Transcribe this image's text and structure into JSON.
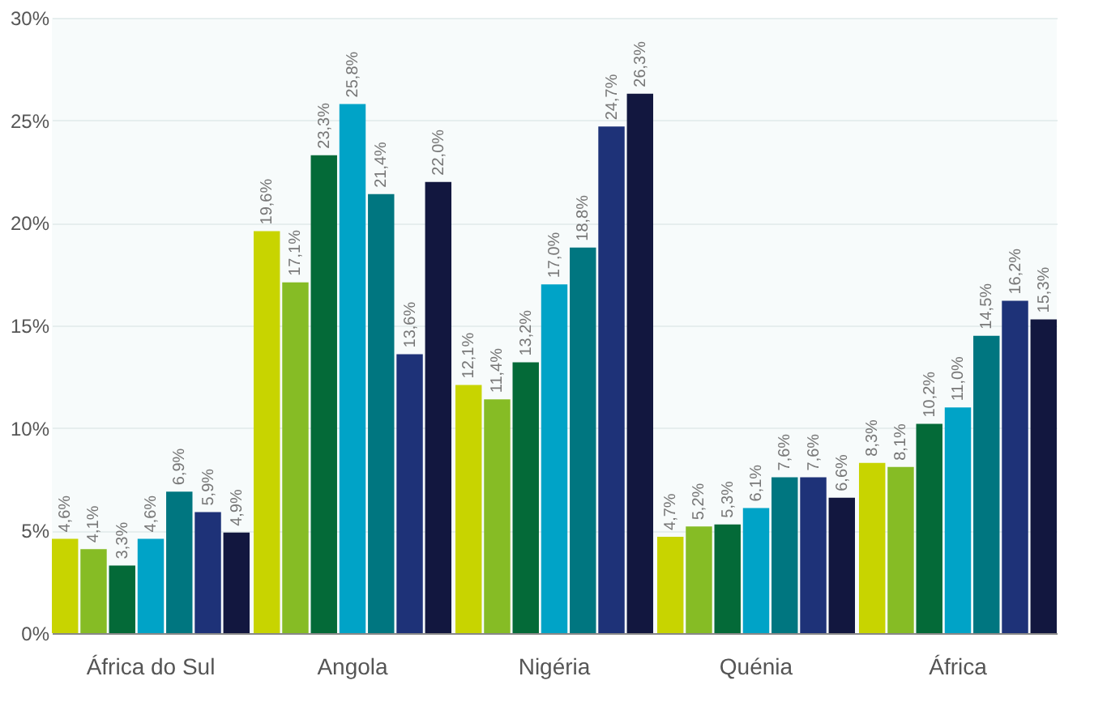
{
  "chart_data": {
    "type": "bar",
    "categories": [
      "África do Sul",
      "Angola",
      "Nigéria",
      "Quénia",
      "África"
    ],
    "ylim": [
      0,
      30
    ],
    "yticks": [
      {
        "value": 0,
        "label": "0%"
      },
      {
        "value": 5,
        "label": "5%"
      },
      {
        "value": 10,
        "label": "10%"
      },
      {
        "value": 15,
        "label": "15%"
      },
      {
        "value": 20,
        "label": "20%"
      },
      {
        "value": 25,
        "label": "25%"
      },
      {
        "value": 30,
        "label": "30%"
      }
    ],
    "grid": "y",
    "legend": false,
    "series": [
      {
        "color": "#c8d400",
        "values": [
          4.6,
          19.6,
          12.1,
          4.7,
          8.3
        ],
        "value_labels": [
          "4,6%",
          "19,6%",
          "12,1%",
          "4,7%",
          "8,3%"
        ]
      },
      {
        "color": "#86bc25",
        "values": [
          4.1,
          17.1,
          11.4,
          5.2,
          8.1
        ],
        "value_labels": [
          "4,1%",
          "17,1%",
          "11,4%",
          "5,2%",
          "8,1%"
        ]
      },
      {
        "color": "#046a38",
        "values": [
          3.3,
          23.3,
          13.2,
          5.3,
          10.2
        ],
        "value_labels": [
          "3,3%",
          "23,3%",
          "13,2%",
          "5,3%",
          "10,2%"
        ]
      },
      {
        "color": "#00a3c7",
        "values": [
          4.6,
          25.8,
          17.0,
          6.1,
          11.0
        ],
        "value_labels": [
          "4,6%",
          "25,8%",
          "17,0%",
          "6,1%",
          "11,0%"
        ]
      },
      {
        "color": "#007680",
        "values": [
          6.9,
          21.4,
          18.8,
          7.6,
          14.5
        ],
        "value_labels": [
          "6,9%",
          "21,4%",
          "18,8%",
          "7,6%",
          "14,5%"
        ]
      },
      {
        "color": "#1e3278",
        "values": [
          5.9,
          13.6,
          24.7,
          7.6,
          16.2
        ],
        "value_labels": [
          "5,9%",
          "13,6%",
          "24,7%",
          "7,6%",
          "16,2%"
        ]
      },
      {
        "color": "#12173f",
        "values": [
          4.9,
          22.0,
          26.3,
          6.6,
          15.3
        ],
        "value_labels": [
          "4,9%",
          "22,0%",
          "26,3%",
          "6,6%",
          "15,3%"
        ]
      }
    ]
  }
}
